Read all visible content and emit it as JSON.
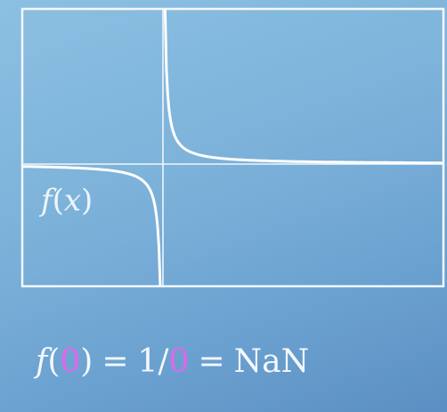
{
  "graph": {
    "function_label": {
      "name": "f",
      "open": "(",
      "var": "x",
      "close": ")"
    }
  },
  "equation": {
    "fn": "f",
    "open": "(",
    "arg": "0",
    "close": ")",
    "eq1": "=",
    "numerator": "1",
    "slash": "/",
    "denominator": "0",
    "eq2": "=",
    "result": "NaN"
  },
  "colors": {
    "background": "#7db3da",
    "line": "#ffffff",
    "highlight": "#e266ea"
  },
  "icons": []
}
